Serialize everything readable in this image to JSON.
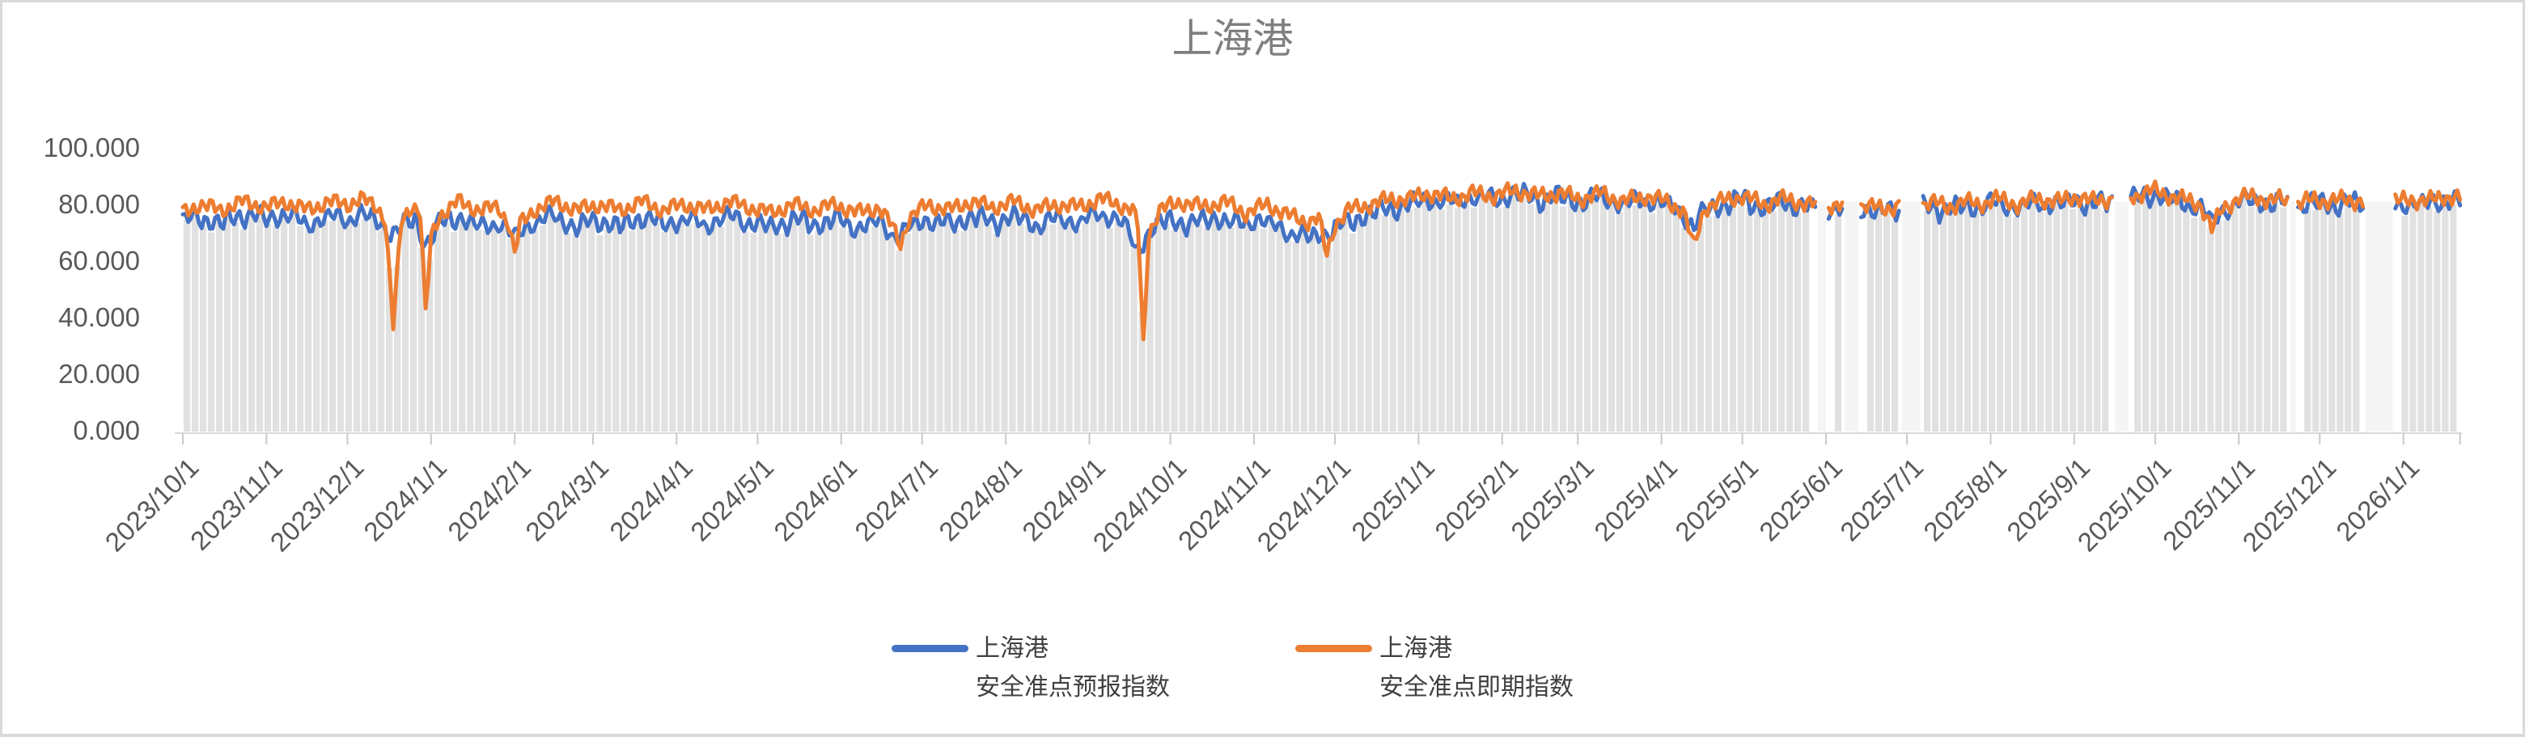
{
  "window": {
    "border_color": "#D9D9D9",
    "background_color": "#FFFFFF"
  },
  "chart_data": {
    "type": "line",
    "title": "上海港",
    "title_color": "#7F7F7F",
    "xlabel": "",
    "ylabel": "",
    "ylim": [
      0,
      100
    ],
    "grid": false,
    "legend_position": "bottom",
    "axis_text_color": "#595959",
    "axis_line_color": "#D9D9D9",
    "tick_mark_color": "#C9C9C9",
    "plot_background_color": "#FFFFFF",
    "background_columns": {
      "description": "light gray vertical columns under the lines, height follows the lower of the two series, thin white separators roughly every 3 days",
      "color": "#E1E1E1",
      "gap_band_color": "#F5F5F5",
      "stride_days": 3
    },
    "y_ticks": [
      {
        "label": "0.000",
        "value": 0
      },
      {
        "label": "20.000",
        "value": 20
      },
      {
        "label": "40.000",
        "value": 40
      },
      {
        "label": "60.000",
        "value": 60
      },
      {
        "label": "80.000",
        "value": 80
      },
      {
        "label": "100.000",
        "value": 100
      }
    ],
    "x_axis_start_day": 0,
    "x_axis_end_day": 844,
    "x_ticks": [
      {
        "label": "2023/10/1",
        "day": 0
      },
      {
        "label": "2023/11/1",
        "day": 31
      },
      {
        "label": "2023/12/1",
        "day": 61
      },
      {
        "label": "2024/1/1",
        "day": 92
      },
      {
        "label": "2024/2/1",
        "day": 123
      },
      {
        "label": "2024/3/1",
        "day": 152
      },
      {
        "label": "2024/4/1",
        "day": 183
      },
      {
        "label": "2024/5/1",
        "day": 213
      },
      {
        "label": "2024/6/1",
        "day": 244
      },
      {
        "label": "2024/7/1",
        "day": 274
      },
      {
        "label": "2024/8/1",
        "day": 305
      },
      {
        "label": "2024/9/1",
        "day": 336
      },
      {
        "label": "2024/10/1",
        "day": 366
      },
      {
        "label": "2024/11/1",
        "day": 397
      },
      {
        "label": "2024/12/1",
        "day": 427
      },
      {
        "label": "2025/1/1",
        "day": 458
      },
      {
        "label": "2025/2/1",
        "day": 489
      },
      {
        "label": "2025/3/1",
        "day": 517
      },
      {
        "label": "2025/4/1",
        "day": 548
      },
      {
        "label": "2025/5/1",
        "day": 578
      },
      {
        "label": "2025/6/1",
        "day": 609
      },
      {
        "label": "2025/7/1",
        "day": 639
      },
      {
        "label": "2025/8/1",
        "day": 670
      },
      {
        "label": "2025/9/1",
        "day": 701
      },
      {
        "label": "2025/10/1",
        "day": 731
      },
      {
        "label": "2025/11/1",
        "day": 762
      },
      {
        "label": "2025/12/1",
        "day": 792
      },
      {
        "label": "2026/1/1",
        "day": 823
      }
    ],
    "gaps": [
      [
        606,
        609
      ],
      [
        616,
        621
      ],
      [
        637,
        644
      ],
      [
        716,
        721
      ],
      [
        781,
        783
      ],
      [
        809,
        819
      ]
    ],
    "series": [
      {
        "name": "上海港 安全准点预报指数",
        "legend_line1": "上海港",
        "legend_line2": "安全准点预报指数",
        "color": "#4472C4",
        "anchors": [
          [
            0,
            74
          ],
          [
            6,
            76
          ],
          [
            14,
            73
          ],
          [
            22,
            77
          ],
          [
            31,
            75
          ],
          [
            38,
            77
          ],
          [
            46,
            73
          ],
          [
            54,
            76
          ],
          [
            61,
            75
          ],
          [
            66,
            77
          ],
          [
            72,
            74
          ],
          [
            78,
            70
          ],
          [
            82,
            73
          ],
          [
            86,
            75
          ],
          [
            90,
            66
          ],
          [
            93,
            70
          ],
          [
            95,
            73
          ],
          [
            102,
            76
          ],
          [
            110,
            72
          ],
          [
            117,
            74
          ],
          [
            121,
            70
          ],
          [
            123,
            69
          ],
          [
            127,
            72
          ],
          [
            130,
            74
          ],
          [
            138,
            76
          ],
          [
            146,
            72
          ],
          [
            154,
            75
          ],
          [
            162,
            72
          ],
          [
            170,
            76
          ],
          [
            178,
            73
          ],
          [
            186,
            75
          ],
          [
            194,
            73
          ],
          [
            202,
            76
          ],
          [
            210,
            74
          ],
          [
            218,
            72
          ],
          [
            226,
            75
          ],
          [
            234,
            73
          ],
          [
            242,
            75
          ],
          [
            250,
            72
          ],
          [
            258,
            74
          ],
          [
            263,
            70
          ],
          [
            266,
            69
          ],
          [
            269,
            72
          ],
          [
            276,
            75
          ],
          [
            284,
            73
          ],
          [
            292,
            76
          ],
          [
            300,
            74
          ],
          [
            308,
            76
          ],
          [
            316,
            73
          ],
          [
            324,
            75
          ],
          [
            332,
            74
          ],
          [
            340,
            77
          ],
          [
            347,
            75
          ],
          [
            351,
            70
          ],
          [
            353,
            63
          ],
          [
            356,
            68
          ],
          [
            360,
            72
          ],
          [
            366,
            75
          ],
          [
            374,
            73
          ],
          [
            382,
            76
          ],
          [
            390,
            73
          ],
          [
            398,
            75
          ],
          [
            406,
            72
          ],
          [
            412,
            70
          ],
          [
            417,
            68
          ],
          [
            421,
            70
          ],
          [
            424,
            70
          ],
          [
            432,
            74
          ],
          [
            440,
            77
          ],
          [
            448,
            79
          ],
          [
            455,
            80
          ],
          [
            462,
            82
          ],
          [
            470,
            81
          ],
          [
            478,
            83
          ],
          [
            486,
            82
          ],
          [
            494,
            84
          ],
          [
            502,
            82
          ],
          [
            510,
            83
          ],
          [
            518,
            81
          ],
          [
            526,
            83
          ],
          [
            534,
            80
          ],
          [
            542,
            82
          ],
          [
            550,
            80
          ],
          [
            556,
            77
          ],
          [
            560,
            72
          ],
          [
            564,
            78
          ],
          [
            570,
            80
          ],
          [
            578,
            82
          ],
          [
            586,
            79
          ],
          [
            592,
            81
          ],
          [
            598,
            80
          ],
          [
            604,
            79
          ],
          [
            611,
            79
          ],
          [
            618,
            78
          ],
          [
            624,
            79
          ],
          [
            630,
            77
          ],
          [
            636,
            79
          ],
          [
            641,
            78
          ],
          [
            648,
            80
          ],
          [
            654,
            78
          ],
          [
            660,
            80
          ],
          [
            666,
            79
          ],
          [
            672,
            81
          ],
          [
            680,
            79
          ],
          [
            688,
            81
          ],
          [
            696,
            80
          ],
          [
            702,
            82
          ],
          [
            708,
            80
          ],
          [
            714,
            81
          ],
          [
            723,
            82
          ],
          [
            730,
            84
          ],
          [
            737,
            82
          ],
          [
            744,
            80
          ],
          [
            748,
            79
          ],
          [
            752,
            74
          ],
          [
            756,
            78
          ],
          [
            762,
            81
          ],
          [
            768,
            82
          ],
          [
            774,
            80
          ],
          [
            778,
            81
          ],
          [
            784,
            79
          ],
          [
            790,
            81
          ],
          [
            796,
            80
          ],
          [
            802,
            81
          ],
          [
            807,
            80
          ],
          [
            812,
            79
          ],
          [
            821,
            80
          ],
          [
            826,
            81
          ],
          [
            832,
            80
          ],
          [
            838,
            82
          ],
          [
            844,
            81
          ]
        ]
      },
      {
        "name": "上海港 安全准点即期指数",
        "legend_line1": "上海港",
        "legend_line2": "安全准点即期指数",
        "color": "#ED7D31",
        "anchors": [
          [
            0,
            77
          ],
          [
            6,
            80
          ],
          [
            14,
            78
          ],
          [
            22,
            81
          ],
          [
            31,
            79
          ],
          [
            38,
            81
          ],
          [
            46,
            78
          ],
          [
            54,
            81
          ],
          [
            61,
            80
          ],
          [
            66,
            82
          ],
          [
            72,
            79
          ],
          [
            75,
            75
          ],
          [
            78,
            37
          ],
          [
            81,
            74
          ],
          [
            85,
            80
          ],
          [
            88,
            77
          ],
          [
            90,
            41
          ],
          [
            92,
            68
          ],
          [
            95,
            76
          ],
          [
            102,
            81
          ],
          [
            110,
            78
          ],
          [
            117,
            79
          ],
          [
            121,
            73
          ],
          [
            123,
            62
          ],
          [
            125,
            73
          ],
          [
            130,
            78
          ],
          [
            138,
            81
          ],
          [
            146,
            78
          ],
          [
            154,
            80
          ],
          [
            162,
            78
          ],
          [
            170,
            81
          ],
          [
            178,
            78
          ],
          [
            186,
            80
          ],
          [
            194,
            78
          ],
          [
            202,
            81
          ],
          [
            210,
            79
          ],
          [
            218,
            77
          ],
          [
            226,
            80
          ],
          [
            234,
            78
          ],
          [
            242,
            80
          ],
          [
            250,
            77
          ],
          [
            258,
            79
          ],
          [
            263,
            72
          ],
          [
            266,
            66
          ],
          [
            269,
            75
          ],
          [
            276,
            80
          ],
          [
            284,
            78
          ],
          [
            292,
            81
          ],
          [
            300,
            79
          ],
          [
            308,
            81
          ],
          [
            316,
            78
          ],
          [
            324,
            80
          ],
          [
            332,
            79
          ],
          [
            340,
            82
          ],
          [
            347,
            80
          ],
          [
            352,
            78
          ],
          [
            354,
            72
          ],
          [
            356,
            30
          ],
          [
            358,
            70
          ],
          [
            362,
            78
          ],
          [
            370,
            81
          ],
          [
            378,
            79
          ],
          [
            386,
            81
          ],
          [
            394,
            77
          ],
          [
            402,
            80
          ],
          [
            410,
            76
          ],
          [
            417,
            74
          ],
          [
            421,
            75
          ],
          [
            424,
            62
          ],
          [
            427,
            73
          ],
          [
            432,
            78
          ],
          [
            440,
            80
          ],
          [
            448,
            82
          ],
          [
            455,
            82
          ],
          [
            462,
            84
          ],
          [
            470,
            82
          ],
          [
            478,
            84
          ],
          [
            486,
            83
          ],
          [
            494,
            85
          ],
          [
            502,
            83
          ],
          [
            510,
            84
          ],
          [
            518,
            82
          ],
          [
            526,
            84
          ],
          [
            534,
            81
          ],
          [
            542,
            83
          ],
          [
            550,
            81
          ],
          [
            556,
            78
          ],
          [
            560,
            65
          ],
          [
            564,
            79
          ],
          [
            570,
            81
          ],
          [
            578,
            83
          ],
          [
            586,
            80
          ],
          [
            592,
            82
          ],
          [
            598,
            81
          ],
          [
            604,
            80
          ],
          [
            611,
            80
          ],
          [
            618,
            79
          ],
          [
            624,
            80
          ],
          [
            630,
            78
          ],
          [
            636,
            80
          ],
          [
            641,
            79
          ],
          [
            648,
            81
          ],
          [
            654,
            79
          ],
          [
            660,
            81
          ],
          [
            666,
            80
          ],
          [
            672,
            82
          ],
          [
            680,
            80
          ],
          [
            688,
            82
          ],
          [
            696,
            81
          ],
          [
            702,
            83
          ],
          [
            708,
            81
          ],
          [
            714,
            82
          ],
          [
            723,
            83
          ],
          [
            730,
            85
          ],
          [
            737,
            83
          ],
          [
            744,
            81
          ],
          [
            748,
            80
          ],
          [
            752,
            71
          ],
          [
            756,
            79
          ],
          [
            762,
            82
          ],
          [
            768,
            83
          ],
          [
            774,
            81
          ],
          [
            778,
            82
          ],
          [
            784,
            80
          ],
          [
            790,
            82
          ],
          [
            796,
            81
          ],
          [
            802,
            82
          ],
          [
            807,
            81
          ],
          [
            812,
            80
          ],
          [
            821,
            81
          ],
          [
            826,
            82
          ],
          [
            832,
            81
          ],
          [
            838,
            83
          ],
          [
            844,
            82
          ]
        ]
      }
    ]
  }
}
